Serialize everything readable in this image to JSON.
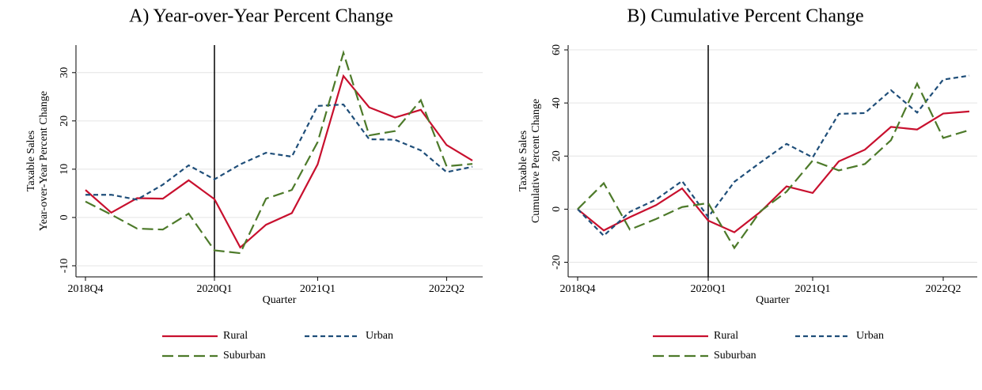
{
  "chart_data": [
    {
      "type": "line",
      "title": "A) Year-over-Year Percent Change",
      "ylabel": [
        "Taxable Sales",
        "Year-over-Year Percent Change"
      ],
      "xlabel": "Quarter",
      "categories": [
        "2018Q4",
        null,
        null,
        null,
        null,
        "2020Q1",
        null,
        null,
        null,
        "2021Q1",
        null,
        null,
        null,
        null,
        "2022Q2",
        null
      ],
      "vline": "2020Q1",
      "ylim": [
        -12.3,
        35.7
      ],
      "yticks": [
        -10,
        0,
        10,
        20,
        30
      ],
      "series": [
        {
          "name": "Rural",
          "color": "#c8102e",
          "dash": "solid",
          "values": [
            5.7,
            1.0,
            4.0,
            3.9,
            7.7,
            3.8,
            -6.2,
            -1.5,
            0.9,
            11,
            29.3,
            22.8,
            20.7,
            22.3,
            15,
            11.8
          ]
        },
        {
          "name": "Urban",
          "color": "#1f4e79",
          "dash": "short",
          "values": [
            4.7,
            4.7,
            3.7,
            6.8,
            10.8,
            7.9,
            11,
            13.4,
            12.6,
            23.1,
            23.4,
            16.2,
            16.1,
            13.9,
            9.4,
            10.5
          ]
        },
        {
          "name": "Suburban",
          "color": "#4d7a2a",
          "dash": "long",
          "values": [
            3.3,
            0.6,
            -2.3,
            -2.5,
            0.8,
            -6.8,
            -7.4,
            3.9,
            5.7,
            15.6,
            34.1,
            17,
            17.9,
            24.3,
            10.6,
            11.1
          ]
        }
      ]
    },
    {
      "type": "line",
      "title": "B) Cumulative Percent Change",
      "ylabel": [
        "Taxable Sales",
        "Cumulative Percent Change"
      ],
      "xlabel": "Quarter",
      "categories": [
        "2018Q4",
        null,
        null,
        null,
        null,
        "2020Q1",
        null,
        null,
        null,
        "2021Q1",
        null,
        null,
        null,
        null,
        "2022Q2",
        null
      ],
      "vline": "2020Q1",
      "ylim": [
        -25.5,
        61.8
      ],
      "yticks": [
        -20,
        0,
        20,
        40,
        60
      ],
      "series": [
        {
          "name": "Rural",
          "color": "#c8102e",
          "dash": "solid",
          "values": [
            0,
            -8,
            -3,
            1.5,
            7.8,
            -4.3,
            -8.7,
            -1,
            8.6,
            6.1,
            18,
            22.4,
            31,
            30,
            36,
            36.8
          ]
        },
        {
          "name": "Urban",
          "color": "#1f4e79",
          "dash": "short",
          "values": [
            0,
            -10,
            -1,
            3.6,
            10.6,
            -3,
            10.3,
            17.6,
            24.6,
            19.5,
            35.9,
            36.2,
            44.8,
            36.4,
            48.8,
            50.3
          ]
        },
        {
          "name": "Suburban",
          "color": "#4d7a2a",
          "dash": "long",
          "values": [
            0,
            9.8,
            -7.7,
            -3.7,
            0.8,
            2.3,
            -14.6,
            -0.8,
            6.6,
            18.3,
            14.6,
            17,
            26,
            47.3,
            26.8,
            29.8
          ]
        }
      ]
    }
  ]
}
